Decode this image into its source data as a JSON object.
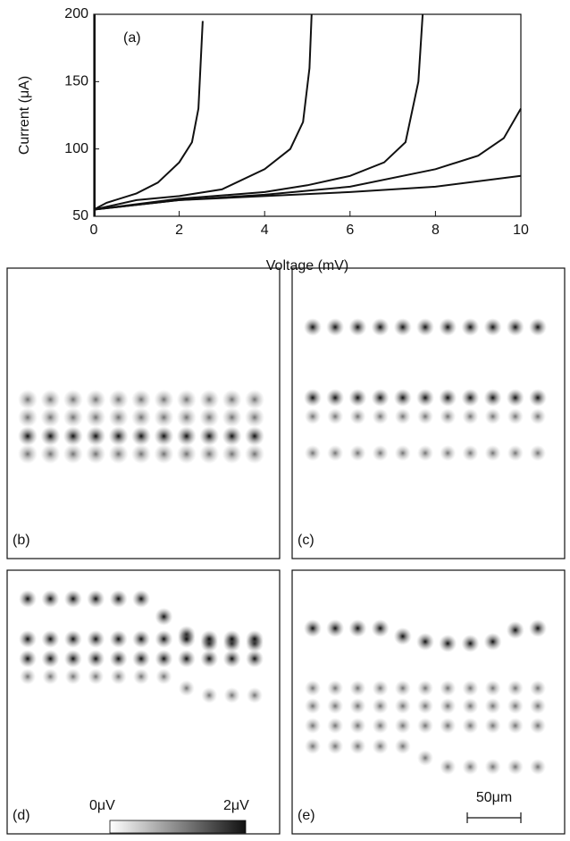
{
  "chart_data": {
    "type": "line",
    "annotation": "(a)",
    "xlabel": "Voltage (mV)",
    "ylabel": "Current (μA)",
    "xlim": [
      0,
      10
    ],
    "ylim": [
      50,
      200
    ],
    "xticks": [
      0,
      2,
      4,
      6,
      8,
      10
    ],
    "yticks": [
      50,
      100,
      150,
      200
    ],
    "series": [
      {
        "color": "#111111",
        "x": [
          0.02,
          0.02
        ],
        "values": [
          50,
          200
        ]
      },
      {
        "color": "#111111",
        "x": [
          0,
          0.3,
          1,
          1.5,
          2,
          2.3,
          2.45,
          2.55
        ],
        "values": [
          55,
          60,
          67,
          75,
          90,
          105,
          130,
          195
        ]
      },
      {
        "color": "#111111",
        "x": [
          0,
          1,
          2,
          3,
          4,
          4.6,
          4.9,
          5.05,
          5.1
        ],
        "values": [
          55,
          62,
          65,
          70,
          85,
          100,
          120,
          160,
          200
        ]
      },
      {
        "color": "#111111",
        "x": [
          0,
          2,
          4,
          5,
          6,
          6.8,
          7.3,
          7.6,
          7.7
        ],
        "values": [
          55,
          63,
          68,
          73,
          80,
          90,
          105,
          150,
          200
        ]
      },
      {
        "color": "#111111",
        "x": [
          0,
          2,
          4,
          6,
          8,
          9,
          9.6,
          10
        ],
        "values": [
          55,
          62,
          66,
          72,
          85,
          95,
          108,
          130
        ]
      },
      {
        "color": "#111111",
        "x": [
          0,
          2,
          4,
          6,
          8,
          10
        ],
        "values": [
          55,
          62,
          65,
          68,
          72,
          80
        ]
      }
    ]
  },
  "panels": [
    {
      "label": "(b)"
    },
    {
      "label": "(c)"
    },
    {
      "label": "(d)"
    },
    {
      "label": "(e)"
    }
  ],
  "colorbar": {
    "min_label": "0μV",
    "max_label": "2μV"
  },
  "scale_bar": "50μm"
}
